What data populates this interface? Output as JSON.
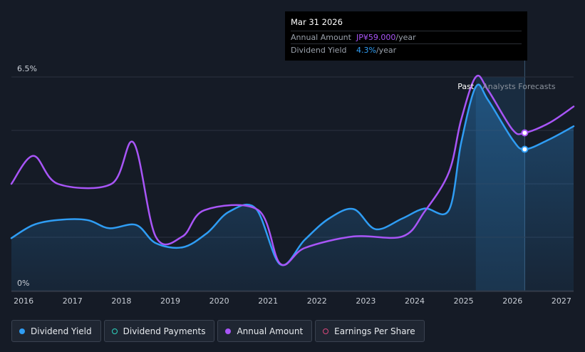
{
  "tooltip": {
    "date": "Mar 31 2026",
    "rows": [
      {
        "label": "Annual Amount",
        "value": "JP¥59.000",
        "unit": "/year"
      },
      {
        "label": "Dividend Yield",
        "value": "4.3%",
        "unit": "/year"
      }
    ]
  },
  "legend": [
    {
      "label": "Dividend Yield",
      "color": "#2f9df4",
      "style": "filled"
    },
    {
      "label": "Dividend Payments",
      "color": "#2dd4bf",
      "style": "hollow"
    },
    {
      "label": "Annual Amount",
      "color": "#a855f7",
      "style": "filled"
    },
    {
      "label": "Earnings Per Share",
      "color": "#d9467a",
      "style": "hollow"
    }
  ],
  "chart_data": {
    "type": "line",
    "y_tick_labels": [
      "6.5%",
      "0%"
    ],
    "ylim": [
      0,
      6.5
    ],
    "xlim": [
      2015.75,
      2027.25
    ],
    "x_tick_labels": [
      "2016",
      "2017",
      "2018",
      "2019",
      "2020",
      "2021",
      "2022",
      "2023",
      "2024",
      "2025",
      "2026",
      "2027"
    ],
    "x_ticks": [
      2016,
      2017,
      2018,
      2019,
      2020,
      2021,
      2022,
      2023,
      2024,
      2025,
      2026,
      2027
    ],
    "period_labels": {
      "past": "Past",
      "forecast": "Analysts Forecasts"
    },
    "forecast_start": 2025.3,
    "forecast_highlight": [
      2025.25,
      2026.25
    ],
    "grid": true,
    "series": [
      {
        "name": "Dividend Yield",
        "color": "#2f9df4",
        "points": [
          [
            2015.75,
            1.6
          ],
          [
            2016.2,
            2.0
          ],
          [
            2016.7,
            2.15
          ],
          [
            2017.3,
            2.15
          ],
          [
            2017.75,
            1.9
          ],
          [
            2018.3,
            2.0
          ],
          [
            2018.7,
            1.45
          ],
          [
            2019.25,
            1.32
          ],
          [
            2019.75,
            1.75
          ],
          [
            2020.2,
            2.4
          ],
          [
            2020.75,
            2.5
          ],
          [
            2021.25,
            0.8
          ],
          [
            2021.75,
            1.55
          ],
          [
            2022.25,
            2.2
          ],
          [
            2022.75,
            2.48
          ],
          [
            2023.2,
            1.87
          ],
          [
            2023.75,
            2.2
          ],
          [
            2024.2,
            2.5
          ],
          [
            2024.7,
            2.45
          ],
          [
            2024.95,
            4.5
          ],
          [
            2025.25,
            6.2
          ],
          [
            2025.5,
            5.8
          ],
          [
            2026.0,
            4.6
          ],
          [
            2026.25,
            4.3
          ],
          [
            2026.75,
            4.6
          ],
          [
            2027.25,
            5.0
          ]
        ]
      },
      {
        "name": "Annual Amount",
        "color": "#a855f7",
        "points": [
          [
            2015.75,
            3.25
          ],
          [
            2016.2,
            4.1
          ],
          [
            2016.7,
            3.25
          ],
          [
            2017.8,
            3.25
          ],
          [
            2018.25,
            4.5
          ],
          [
            2018.7,
            1.65
          ],
          [
            2019.25,
            1.65
          ],
          [
            2019.7,
            2.45
          ],
          [
            2020.8,
            2.45
          ],
          [
            2021.25,
            0.82
          ],
          [
            2021.75,
            1.3
          ],
          [
            2022.75,
            1.65
          ],
          [
            2023.75,
            1.65
          ],
          [
            2024.2,
            2.4
          ],
          [
            2024.7,
            3.6
          ],
          [
            2024.95,
            5.2
          ],
          [
            2025.25,
            6.5
          ],
          [
            2025.5,
            6.1
          ],
          [
            2026.0,
            4.9
          ],
          [
            2026.25,
            4.8
          ],
          [
            2026.75,
            5.1
          ],
          [
            2027.25,
            5.6
          ]
        ]
      }
    ],
    "markers": [
      {
        "series": "Dividend Yield",
        "x": 2026.25,
        "y": 4.3
      },
      {
        "series": "Annual Amount",
        "x": 2026.25,
        "y": 4.8
      }
    ]
  }
}
